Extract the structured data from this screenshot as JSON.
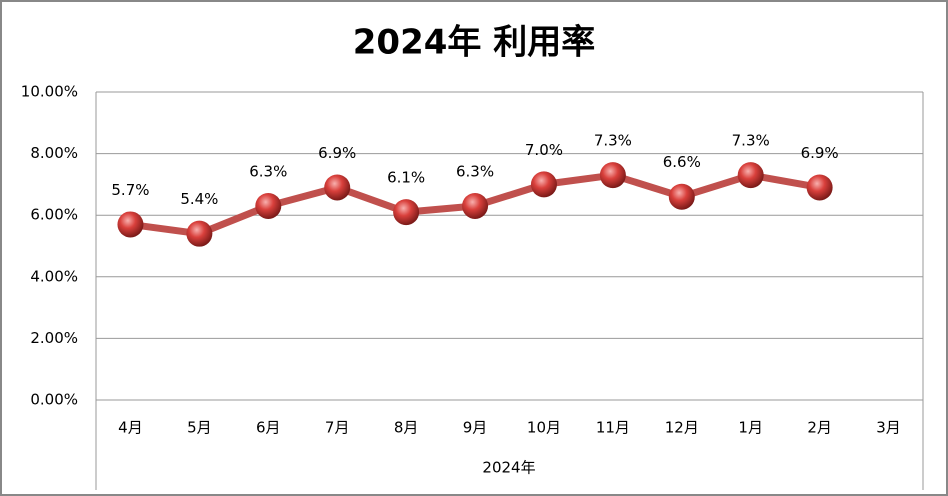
{
  "chart_data": {
    "type": "line",
    "title": "2024年 利用率",
    "x_group_label": "2024年",
    "categories": [
      "4月",
      "5月",
      "6月",
      "7月",
      "8月",
      "9月",
      "10月",
      "11月",
      "12月",
      "1月",
      "2月",
      "3月"
    ],
    "series": [
      {
        "name": "利用率",
        "color": "#c0504d",
        "values": [
          5.7,
          5.4,
          6.3,
          6.9,
          6.1,
          6.3,
          7.0,
          7.3,
          6.6,
          7.3,
          6.9,
          null
        ],
        "value_labels": [
          "5.7%",
          "5.4%",
          "6.3%",
          "6.9%",
          "6.1%",
          "6.3%",
          "7.0%",
          "7.3%",
          "6.6%",
          "7.3%",
          "6.9%",
          null
        ]
      }
    ],
    "ylim": [
      0,
      10
    ],
    "yticks": [
      {
        "value": 0,
        "label": "0.00%"
      },
      {
        "value": 2,
        "label": "2.00%"
      },
      {
        "value": 4,
        "label": "4.00%"
      },
      {
        "value": 6,
        "label": "6.00%"
      },
      {
        "value": 8,
        "label": "8.00%"
      },
      {
        "value": 10,
        "label": "10.00%"
      }
    ],
    "grid": true
  }
}
